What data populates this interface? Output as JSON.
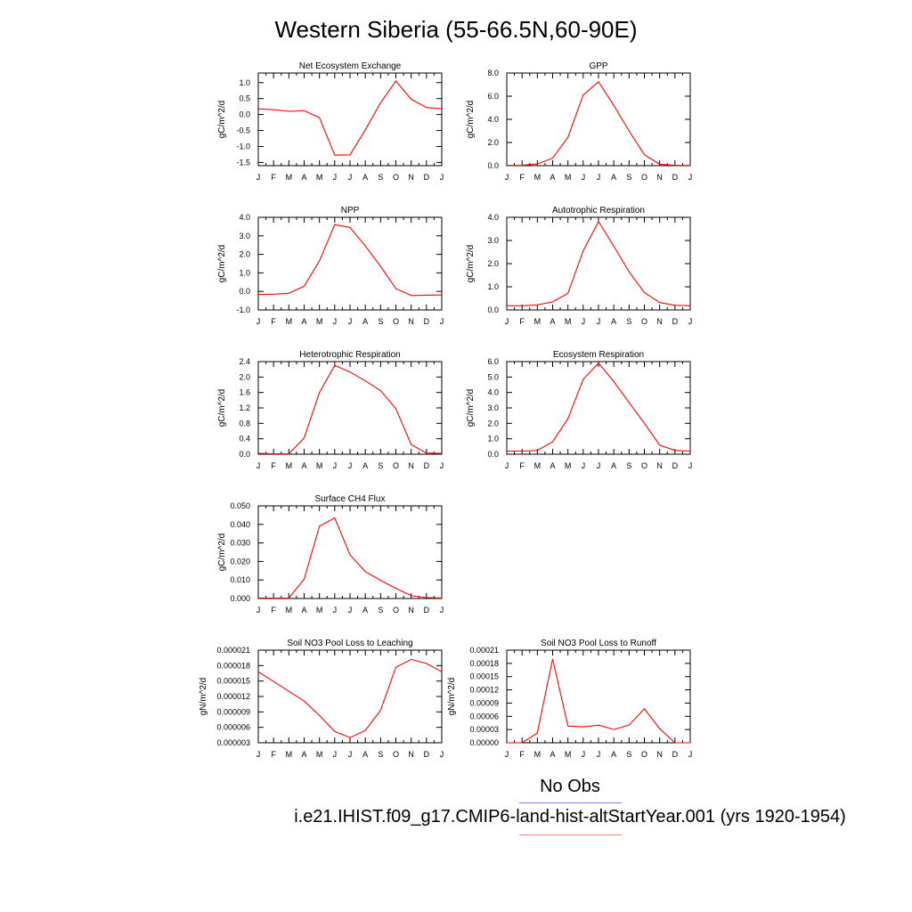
{
  "page_title": "Western Siberia (55-66.5N,60-90E)",
  "legend": {
    "no_obs_label": "No Obs",
    "no_obs_color": "#8080ff",
    "case_label": "i.e21.IHIST.f09_g17.CMIP6-land-hist-altStartYear.001 (yrs 1920-1954)",
    "case_color": "#ff8080"
  },
  "chart_data": [
    {
      "type": "line",
      "title": "Net Ecosystem Exchange",
      "ylabel": "gC/m^2/d",
      "x": [
        "J",
        "F",
        "M",
        "A",
        "M",
        "J",
        "J",
        "A",
        "S",
        "O",
        "N",
        "D",
        "J"
      ],
      "ylim": [
        -1.6,
        1.3
      ],
      "yticks": [
        -1.5,
        -1.0,
        -0.5,
        0.0,
        0.5,
        1.0
      ],
      "ytick_labels": [
        "-1.5",
        "-1.0",
        "-0.5",
        "0.0",
        "0.5",
        "1.0"
      ],
      "series": [
        {
          "color": "#ff0000",
          "values": [
            0.18,
            0.15,
            0.1,
            0.12,
            -0.1,
            -1.27,
            -1.26,
            -0.48,
            0.37,
            1.05,
            0.48,
            0.22,
            0.18
          ]
        }
      ]
    },
    {
      "type": "line",
      "title": "GPP",
      "ylabel": "gC/m^2/d",
      "x": [
        "J",
        "F",
        "M",
        "A",
        "M",
        "J",
        "J",
        "A",
        "S",
        "O",
        "N",
        "D",
        "J"
      ],
      "ylim": [
        0,
        8
      ],
      "yticks": [
        0,
        2,
        4,
        6,
        8
      ],
      "ytick_labels": [
        "0.0",
        "2.0",
        "4.0",
        "6.0",
        "8.0"
      ],
      "series": [
        {
          "color": "#ff0000",
          "values": [
            0.02,
            0.03,
            0.15,
            0.65,
            2.45,
            6.1,
            7.25,
            5.2,
            3.0,
            0.95,
            0.12,
            0.03,
            0.02
          ]
        }
      ]
    },
    {
      "type": "line",
      "title": "NPP",
      "ylabel": "gC/m^2/d",
      "x": [
        "J",
        "F",
        "M",
        "A",
        "M",
        "J",
        "J",
        "A",
        "S",
        "O",
        "N",
        "D",
        "J"
      ],
      "ylim": [
        -1,
        4
      ],
      "yticks": [
        -1,
        0,
        1,
        2,
        3,
        4
      ],
      "ytick_labels": [
        "-1.0",
        "0.0",
        "1.0",
        "2.0",
        "3.0",
        "4.0"
      ],
      "series": [
        {
          "color": "#ff0000",
          "values": [
            -0.17,
            -0.15,
            -0.1,
            0.28,
            1.65,
            3.6,
            3.45,
            2.45,
            1.35,
            0.15,
            -0.22,
            -0.2,
            -0.19
          ]
        }
      ]
    },
    {
      "type": "line",
      "title": "Autotrophic Respiration",
      "ylabel": "gC/m^2/d",
      "x": [
        "J",
        "F",
        "M",
        "A",
        "M",
        "J",
        "J",
        "A",
        "S",
        "O",
        "N",
        "D",
        "J"
      ],
      "ylim": [
        0,
        4
      ],
      "yticks": [
        0,
        1,
        2,
        3,
        4
      ],
      "ytick_labels": [
        "0.0",
        "1.0",
        "2.0",
        "3.0",
        "4.0"
      ],
      "series": [
        {
          "color": "#ff0000",
          "values": [
            0.18,
            0.18,
            0.22,
            0.35,
            0.72,
            2.55,
            3.82,
            2.75,
            1.65,
            0.75,
            0.32,
            0.2,
            0.18
          ]
        }
      ]
    },
    {
      "type": "line",
      "title": "Heterotrophic Respiration",
      "ylabel": "gC/m^2/d",
      "x": [
        "J",
        "F",
        "M",
        "A",
        "M",
        "J",
        "J",
        "A",
        "S",
        "O",
        "N",
        "D",
        "J"
      ],
      "ylim": [
        0,
        2.4
      ],
      "yticks": [
        0,
        0.4,
        0.8,
        1.2,
        1.6,
        2.0,
        2.4
      ],
      "ytick_labels": [
        "0.0",
        "0.4",
        "0.8",
        "1.2",
        "1.6",
        "2.0",
        "2.4"
      ],
      "series": [
        {
          "color": "#ff0000",
          "values": [
            0.02,
            0.01,
            0.01,
            0.42,
            1.6,
            2.3,
            2.13,
            1.9,
            1.65,
            1.18,
            0.25,
            0.03,
            0.02
          ]
        }
      ]
    },
    {
      "type": "line",
      "title": "Ecosystem Respiration",
      "ylabel": "gC/m^2/d",
      "x": [
        "J",
        "F",
        "M",
        "A",
        "M",
        "J",
        "J",
        "A",
        "S",
        "O",
        "N",
        "D",
        "J"
      ],
      "ylim": [
        0,
        6
      ],
      "yticks": [
        0,
        1,
        2,
        3,
        4,
        5,
        6
      ],
      "ytick_labels": [
        "0.0",
        "1.0",
        "2.0",
        "3.0",
        "4.0",
        "5.0",
        "6.0"
      ],
      "series": [
        {
          "color": "#ff0000",
          "values": [
            0.2,
            0.2,
            0.25,
            0.8,
            2.3,
            4.85,
            5.9,
            4.7,
            3.35,
            2.0,
            0.58,
            0.25,
            0.2
          ]
        }
      ]
    },
    {
      "type": "line",
      "title": "Surface CH4 Flux",
      "ylabel": "gC/m^2/d",
      "x": [
        "J",
        "F",
        "M",
        "A",
        "M",
        "J",
        "J",
        "A",
        "S",
        "O",
        "N",
        "D",
        "J"
      ],
      "ylim": [
        0,
        0.05
      ],
      "yticks": [
        0,
        0.01,
        0.02,
        0.03,
        0.04,
        0.05
      ],
      "ytick_labels": [
        "0.000",
        "0.010",
        "0.020",
        "0.030",
        "0.040",
        "0.050"
      ],
      "series": [
        {
          "color": "#ff0000",
          "values": [
            0.0003,
            0.0002,
            0.0002,
            0.0105,
            0.039,
            0.0435,
            0.0235,
            0.0145,
            0.0098,
            0.0055,
            0.0015,
            0.0005,
            0.0003
          ]
        }
      ]
    },
    {
      "type": "line",
      "title": "Soil NO3 Pool Loss to Leaching",
      "ylabel": "gN/m^2/d",
      "x": [
        "J",
        "F",
        "M",
        "A",
        "M",
        "J",
        "J",
        "A",
        "S",
        "O",
        "N",
        "D",
        "J"
      ],
      "ylim": [
        3e-06,
        2.1e-05
      ],
      "yticks": [
        3e-06,
        6e-06,
        9e-06,
        1.2e-05,
        1.5e-05,
        1.8e-05,
        2.1e-05
      ],
      "ytick_labels": [
        "0.000003",
        "0.000006",
        "0.000009",
        "0.000012",
        "0.000015",
        "0.000018",
        "0.000021"
      ],
      "series": [
        {
          "color": "#ff0000",
          "values": [
            1.68e-05,
            1.49e-05,
            1.3e-05,
            1.11e-05,
            8.3e-06,
            5.2e-06,
            4e-06,
            5.4e-06,
            9.3e-06,
            1.77e-05,
            1.92e-05,
            1.84e-05,
            1.68e-05
          ]
        }
      ]
    },
    {
      "type": "line",
      "title": "Soil NO3 Pool Loss to Runoff",
      "ylabel": "gN/m^2/d",
      "x": [
        "J",
        "F",
        "M",
        "A",
        "M",
        "J",
        "J",
        "A",
        "S",
        "O",
        "N",
        "D",
        "J"
      ],
      "ylim": [
        0,
        0.00021
      ],
      "yticks": [
        0,
        3e-05,
        6e-05,
        9e-05,
        0.00012,
        0.00015,
        0.00018,
        0.00021
      ],
      "ytick_labels": [
        "0.00000",
        "0.00003",
        "0.00006",
        "0.00009",
        "0.00012",
        "0.00015",
        "0.00018",
        "0.00021"
      ],
      "series": [
        {
          "color": "#ff0000",
          "values": [
            0.0,
            0.0,
            2.2e-05,
            0.00019,
            3.8e-05,
            3.6e-05,
            4e-05,
            3e-05,
            4e-05,
            7.7e-05,
            3.2e-05,
            0.0,
            0.0
          ]
        }
      ]
    }
  ]
}
